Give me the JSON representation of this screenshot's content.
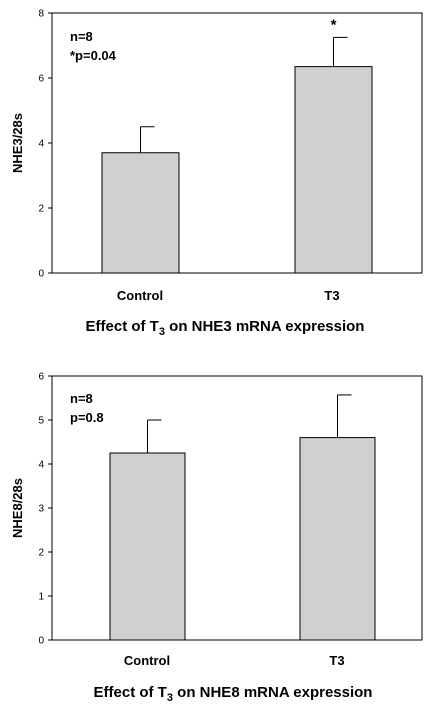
{
  "chart_data": [
    {
      "type": "bar",
      "categories": [
        "Control",
        "T3"
      ],
      "values": [
        3.7,
        6.35
      ],
      "errors": [
        0.8,
        0.9
      ],
      "ylabel": "NHE3/28s",
      "ylim": [
        0,
        8
      ],
      "yticks": [
        0,
        2,
        4,
        6,
        8
      ],
      "annotations": [
        "n=8",
        "*p=0.04"
      ],
      "significance_marker": "*",
      "caption": {
        "pre": "Effect of T",
        "sub": "3",
        "post": " on NHE3 mRNA expression"
      },
      "grid": false
    },
    {
      "type": "bar",
      "categories": [
        "Control",
        "T3"
      ],
      "values": [
        4.25,
        4.6
      ],
      "errors": [
        0.75,
        0.97
      ],
      "ylabel": "NHE8/28s",
      "ylim": [
        0,
        6
      ],
      "yticks": [
        0,
        1,
        2,
        3,
        4,
        5,
        6
      ],
      "annotations": [
        "n=8",
        "p=0.8"
      ],
      "caption": {
        "pre": "Effect of T",
        "sub": "3",
        "post": " on NHE8 mRNA expression"
      },
      "grid": false
    }
  ]
}
